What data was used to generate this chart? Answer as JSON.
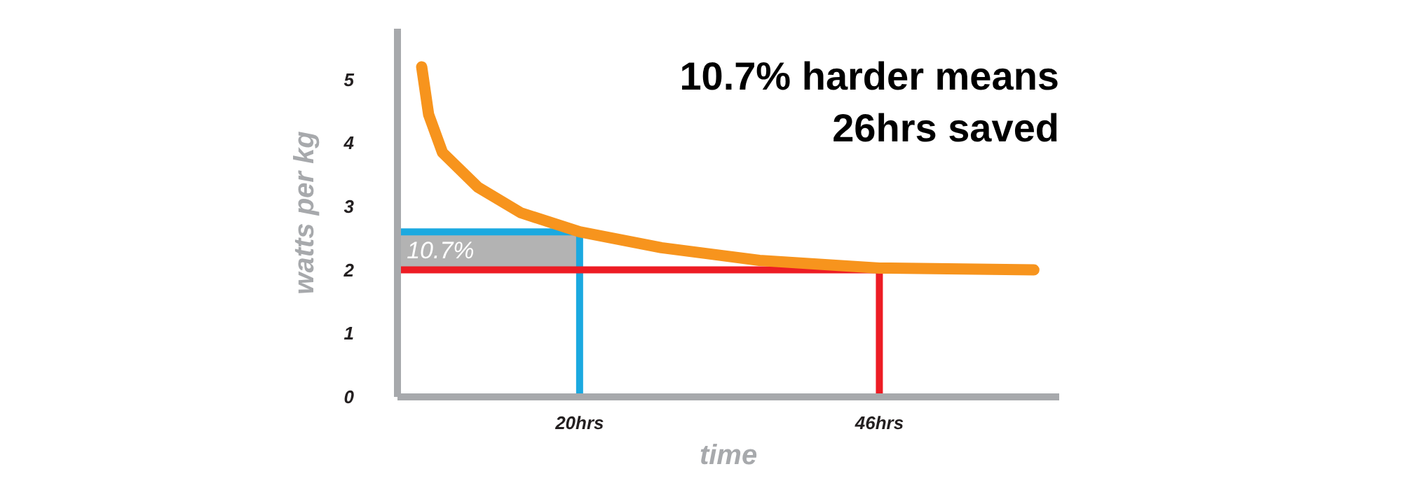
{
  "chart_data": {
    "type": "line",
    "title": "10.7% harder means\n26hrs saved",
    "xlabel": "time",
    "ylabel": "watts per kg",
    "x": [
      6.3,
      6.9,
      8.1,
      11.2,
      14.9,
      20,
      27.1,
      35.6,
      46,
      59.4
    ],
    "series": [
      {
        "color": "#f7941d",
        "values": [
          5.2,
          4.45,
          3.85,
          3.3,
          2.9,
          2.6,
          2.35,
          2.15,
          2.03,
          2.0
        ]
      }
    ],
    "xlim": [
      4.2,
      61.6
    ],
    "ylim": [
      0,
      5.8
    ],
    "xticks": [
      {
        "value": 20,
        "label": "20hrs"
      },
      {
        "value": 46,
        "label": "46hrs"
      }
    ],
    "yticks": [
      0,
      1,
      2,
      3,
      4,
      5
    ],
    "ref_lines": [
      {
        "axis": "y",
        "value": 2.6,
        "color": "#1ba9e0"
      },
      {
        "axis": "x",
        "value": 20,
        "color": "#1ba9e0"
      },
      {
        "axis": "y",
        "value": 2,
        "color": "#ed1c24"
      },
      {
        "axis": "x",
        "value": 46,
        "color": "#ed1c24"
      }
    ],
    "bands": [
      {
        "axis": "y",
        "from": 2,
        "to": 2.6,
        "label": "10.7%",
        "color": "#b3b3b3"
      }
    ],
    "grid": false,
    "marker": "none",
    "line_style": "solid"
  }
}
